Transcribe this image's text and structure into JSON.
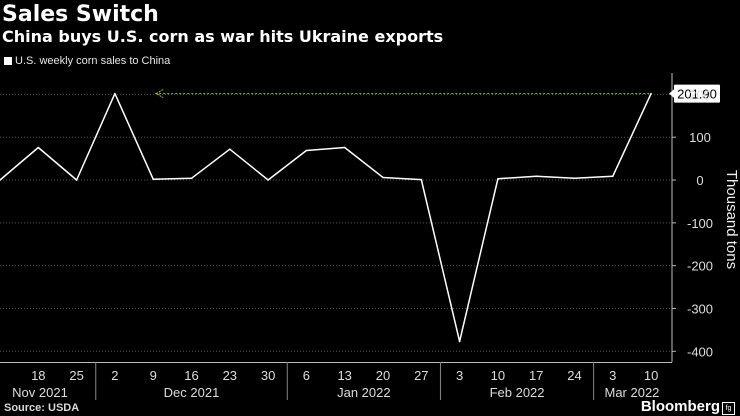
{
  "header": {
    "title": "Sales Switch",
    "subtitle": "China buys U.S. corn as war hits Ukraine exports"
  },
  "legend": {
    "label": "U.S. weekly corn sales to China"
  },
  "footer": {
    "source": "Source: USDA",
    "brand": "Bloomberg",
    "brand_mark": "fg"
  },
  "colors": {
    "background": "#000000",
    "line": "#ffffff",
    "grid": "#555555",
    "highlight": "#8bc34a"
  },
  "chart_data": {
    "type": "line",
    "title": "Sales Switch",
    "subtitle": "China buys U.S. corn as war hits Ukraine exports",
    "ylabel": "Thousand tons",
    "xlabel": "",
    "ylim": [
      -425,
      250
    ],
    "y_ticks": [
      200,
      100,
      0,
      -100,
      -200,
      -300,
      -400
    ],
    "y_tick_labels": [
      "200",
      "100",
      "0",
      "-100",
      "-200",
      "-300",
      "-400"
    ],
    "grid": true,
    "x": [
      "Nov 11 2021",
      "Nov 18 2021",
      "Nov 25 2021",
      "Dec 2 2021",
      "Dec 9 2021",
      "Dec 16 2021",
      "Dec 23 2021",
      "Dec 30 2021",
      "Jan 6 2022",
      "Jan 13 2022",
      "Jan 20 2022",
      "Jan 27 2022",
      "Feb 3 2022",
      "Feb 10 2022",
      "Feb 17 2022",
      "Feb 24 2022",
      "Mar 3 2022",
      "Mar 10 2022"
    ],
    "x_day_labels": [
      "",
      "18",
      "25",
      "2",
      "9",
      "16",
      "23",
      "30",
      "6",
      "13",
      "20",
      "27",
      "3",
      "10",
      "17",
      "24",
      "3",
      "10"
    ],
    "month_groups": [
      {
        "label": "Nov 2021",
        "start": 0,
        "end": 3
      },
      {
        "label": "Dec 2021",
        "start": 3,
        "end": 8
      },
      {
        "label": "Jan 2022",
        "start": 8,
        "end": 12
      },
      {
        "label": "Feb 2022",
        "start": 12,
        "end": 16
      },
      {
        "label": "Mar 2022",
        "start": 16,
        "end": 18
      }
    ],
    "series": [
      {
        "name": "U.S. weekly corn sales to China",
        "values": [
          0,
          76,
          0,
          202,
          2,
          4,
          72,
          0,
          69,
          76,
          6,
          1,
          -377,
          3,
          9,
          4,
          9,
          201.9
        ]
      }
    ],
    "annotations": [
      {
        "text": "201.90",
        "value": 201.9,
        "type": "last-value-callout"
      }
    ]
  }
}
